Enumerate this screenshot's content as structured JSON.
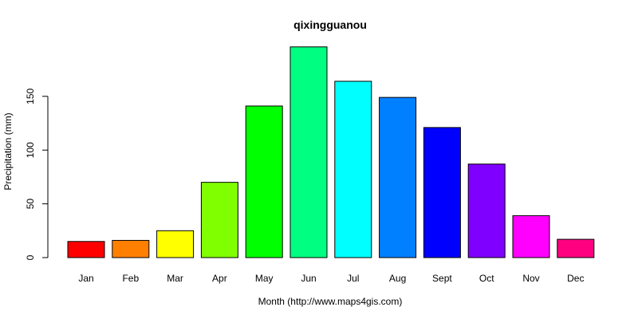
{
  "chart_data": {
    "type": "bar",
    "title": "qixingguanou",
    "xlabel": "Month (http://www.maps4gis.com)",
    "ylabel": "Precipitation (mm)",
    "categories": [
      "Jan",
      "Feb",
      "Mar",
      "Apr",
      "May",
      "Jun",
      "Jul",
      "Aug",
      "Sept",
      "Oct",
      "Nov",
      "Dec"
    ],
    "values": [
      15,
      16,
      25,
      70,
      141,
      196,
      164,
      149,
      121,
      87,
      39,
      17
    ],
    "colors": [
      "#FF0000",
      "#FF8000",
      "#FFFF00",
      "#80FF00",
      "#00FF00",
      "#00FF80",
      "#00FFFF",
      "#0080FF",
      "#0000FF",
      "#8000FF",
      "#FF00FF",
      "#FF0080"
    ],
    "ylim": [
      0,
      200
    ],
    "yticks": [
      0,
      50,
      100,
      150
    ],
    "grid": false,
    "legend": "none"
  }
}
